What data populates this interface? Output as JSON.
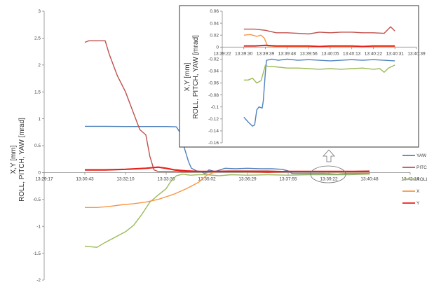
{
  "chart_data": [
    {
      "type": "line",
      "title": "",
      "ylabel": "X,Y [mm]\nROLL, PITCH, YAW [mrad]",
      "ylim": [
        -2,
        3
      ],
      "y_ticks": [
        "-2",
        "-1.5",
        "-1",
        "-0.5",
        "0",
        "0.5",
        "1",
        "1.5",
        "2",
        "2.5",
        "3"
      ],
      "x_ticks": [
        "13:29:17",
        "13:30:43",
        "13:32:10",
        "13:33:36",
        "13:35:02",
        "13:36:29",
        "13:37:55",
        "13:39:22",
        "13:40:48",
        "13:42:14"
      ],
      "x_tick_positions": [
        0,
        1,
        2,
        3,
        4,
        5,
        6,
        7,
        8,
        9
      ],
      "xlim": [
        0,
        9
      ],
      "grid": false,
      "legend_position": "right",
      "series": [
        {
          "name": "YAW",
          "color": "#4f81bd",
          "x": [
            1,
            1.5,
            2,
            2.5,
            3,
            3.25,
            3.38,
            3.45,
            3.55,
            3.62,
            3.75,
            3.85,
            3.95,
            4.05,
            4.2,
            4.45,
            4.7,
            5,
            5.3,
            5.6,
            5.85,
            6,
            6.1,
            6.3,
            6.6,
            6.9,
            7.2,
            7.4,
            7.7,
            8
          ],
          "y": [
            0.86,
            0.86,
            0.855,
            0.855,
            0.855,
            0.85,
            0.7,
            0.45,
            0.2,
            0.08,
            0.03,
            0.02,
            -0.02,
            0.05,
            0.02,
            0.08,
            0.07,
            0.08,
            0.07,
            0.07,
            0.06,
            0.03,
            -0.02,
            -0.02,
            -0.02,
            -0.02,
            -0.03,
            -0.02,
            -0.02,
            -0.02
          ]
        },
        {
          "name": "PITCH",
          "color": "#c0504d",
          "x": [
            1,
            1.1,
            1.3,
            1.5,
            1.6,
            1.8,
            2,
            2.15,
            2.35,
            2.5,
            2.6,
            2.7,
            2.8,
            3,
            3.2,
            3.5,
            4,
            4.5,
            5,
            5.5,
            6,
            6.5,
            7,
            7.5,
            8
          ],
          "y": [
            2.42,
            2.45,
            2.45,
            2.45,
            2.2,
            1.8,
            1.5,
            1.2,
            0.8,
            0.7,
            0.3,
            0.05,
            0.02,
            0.02,
            0.02,
            0.01,
            0.02,
            0.03,
            0.03,
            0.03,
            0.02,
            0.02,
            0.02,
            0.02,
            0.03
          ]
        },
        {
          "name": "ROLL",
          "color": "#9bbb59",
          "x": [
            1,
            1.3,
            1.5,
            1.7,
            2,
            2.2,
            2.4,
            2.6,
            2.8,
            3,
            3.1,
            3.25,
            3.4,
            3.5,
            3.6,
            3.8,
            4,
            4.3,
            4.6,
            5,
            5.5,
            6,
            6.5,
            7,
            7.5,
            8
          ],
          "y": [
            -1.37,
            -1.39,
            -1.3,
            -1.22,
            -1.1,
            -0.98,
            -0.78,
            -0.55,
            -0.42,
            -0.3,
            -0.18,
            -0.06,
            -0.03,
            -0.04,
            -0.05,
            -0.04,
            -0.04,
            -0.06,
            -0.04,
            -0.05,
            -0.04,
            -0.05,
            -0.04,
            -0.04,
            -0.04,
            -0.03
          ]
        },
        {
          "name": "X",
          "color": "#f79646",
          "x": [
            1,
            1.3,
            1.6,
            1.9,
            2.2,
            2.5,
            2.8,
            3,
            3.2,
            3.5,
            3.8,
            4,
            4.2,
            4.5,
            5,
            5.5,
            6,
            6.5,
            7,
            7.5,
            8
          ],
          "y": [
            -0.65,
            -0.65,
            -0.63,
            -0.6,
            -0.58,
            -0.55,
            -0.5,
            -0.45,
            -0.4,
            -0.3,
            -0.18,
            -0.05,
            0.01,
            0.02,
            0.01,
            0.01,
            0.02,
            0.02,
            0.01,
            0.01,
            0.01
          ]
        },
        {
          "name": "Y",
          "color": "#e8201a",
          "x": [
            1,
            1.5,
            2,
            2.5,
            2.8,
            3,
            3.2,
            3.5,
            3.8,
            4,
            4.5,
            5,
            5.5,
            6,
            6.5,
            7,
            7.5,
            8
          ],
          "y": [
            0.05,
            0.05,
            0.06,
            0.08,
            0.1,
            0.08,
            0.05,
            0.03,
            0.02,
            0.02,
            0.02,
            0.02,
            0.01,
            0.02,
            0.02,
            0.02,
            0.02,
            0.02
          ]
        }
      ]
    },
    {
      "type": "line",
      "title": "",
      "ylabel": "X,Y [mm]\nROLL, PITCH, YAW [mrad]",
      "ylim": [
        -0.16,
        0.06
      ],
      "y_ticks": [
        "-0.16",
        "-0.14",
        "-0.12",
        "-0.1",
        "-0.08",
        "-0.06",
        "-0.04",
        "-0.02",
        "0",
        "0.02",
        "0.04",
        "0.06"
      ],
      "x_ticks": [
        "13:39:22",
        "13:39:30",
        "13:39:39",
        "13:39:48",
        "13:39:56",
        "13:40:05",
        "13:40:13",
        "13:40:22",
        "13:40:31",
        "13:40:39"
      ],
      "x_tick_positions": [
        0,
        1,
        2,
        3,
        4,
        5,
        6,
        7,
        8,
        9
      ],
      "xlim": [
        0,
        9
      ],
      "grid": false,
      "series": [
        {
          "name": "YAW",
          "color": "#4f81bd",
          "x": [
            1,
            1.2,
            1.4,
            1.5,
            1.6,
            1.7,
            1.85,
            1.9,
            2.0,
            2.05,
            2.3,
            2.6,
            3,
            3.5,
            4,
            4.5,
            5,
            5.5,
            6,
            6.5,
            7,
            7.5,
            8
          ],
          "y": [
            -0.117,
            -0.125,
            -0.132,
            -0.13,
            -0.105,
            -0.1,
            -0.102,
            -0.09,
            -0.04,
            -0.022,
            -0.02,
            -0.022,
            -0.02,
            -0.022,
            -0.021,
            -0.022,
            -0.023,
            -0.022,
            -0.021,
            -0.022,
            -0.021,
            -0.022,
            -0.023
          ]
        },
        {
          "name": "PITCH",
          "color": "#c0504d",
          "x": [
            1,
            1.5,
            2,
            2.5,
            3,
            3.5,
            4,
            4.5,
            5,
            5.5,
            6,
            6.5,
            7,
            7.5,
            7.8,
            8
          ],
          "y": [
            0.03,
            0.03,
            0.028,
            0.024,
            0.024,
            0.023,
            0.022,
            0.025,
            0.024,
            0.025,
            0.025,
            0.024,
            0.024,
            0.023,
            0.034,
            0.027
          ]
        },
        {
          "name": "ROLL",
          "color": "#9bbb59",
          "x": [
            1,
            1.2,
            1.4,
            1.6,
            1.8,
            2,
            2.1,
            2.5,
            3,
            3.5,
            4,
            4.5,
            5,
            5.5,
            6,
            6.5,
            7,
            7.3,
            7.5,
            7.7,
            8
          ],
          "y": [
            -0.055,
            -0.055,
            -0.052,
            -0.06,
            -0.056,
            -0.03,
            -0.032,
            -0.033,
            -0.035,
            -0.035,
            -0.036,
            -0.037,
            -0.036,
            -0.037,
            -0.036,
            -0.035,
            -0.037,
            -0.036,
            -0.042,
            -0.035,
            -0.03
          ]
        },
        {
          "name": "X",
          "color": "#f79646",
          "x": [
            1,
            1.3,
            1.6,
            1.8,
            1.95,
            2.1,
            2.5,
            3,
            3.5,
            4,
            4.5,
            5,
            5.5,
            6,
            6.5,
            7,
            7.5,
            8
          ],
          "y": [
            0.02,
            0.021,
            0.018,
            0.02,
            0.015,
            0.002,
            0.001,
            0.001,
            0.001,
            0.001,
            0.001,
            0.001,
            0.001,
            0.001,
            0.001,
            0.001,
            0.001,
            0.001
          ]
        },
        {
          "name": "Y",
          "color": "#e8201a",
          "x": [
            1,
            1.5,
            2,
            2.5,
            3,
            3.5,
            4,
            4.5,
            5,
            5.5,
            6,
            6.5,
            7,
            7.5,
            8
          ],
          "y": [
            0.002,
            0.002,
            0.003,
            0.002,
            0.002,
            0.002,
            0.002,
            0.001,
            0.002,
            0.002,
            0.002,
            0.001,
            0.002,
            0.002,
            0.002
          ]
        }
      ]
    }
  ]
}
